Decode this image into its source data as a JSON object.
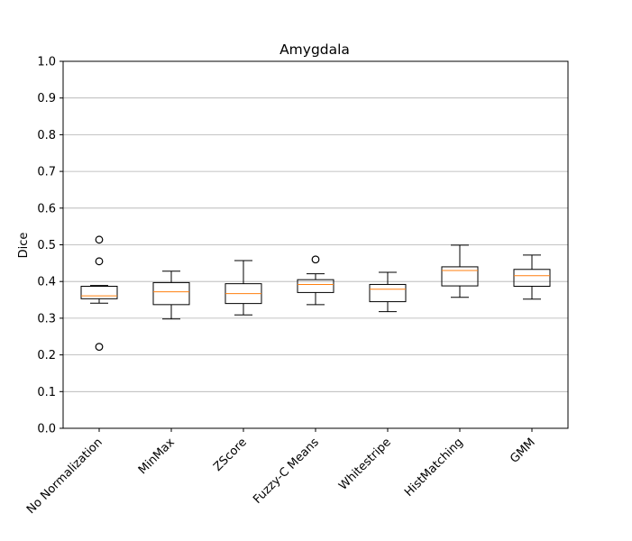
{
  "chart_data": {
    "type": "box",
    "title": "Amygdala",
    "xlabel": "",
    "ylabel": "Dice",
    "ylim": [
      0.0,
      1.0
    ],
    "yticks": [
      0.0,
      0.1,
      0.2,
      0.3,
      0.4,
      0.5,
      0.6,
      0.7,
      0.8,
      0.9,
      1.0
    ],
    "ytick_labels": [
      "0.0",
      "0.1",
      "0.2",
      "0.3",
      "0.4",
      "0.5",
      "0.6",
      "0.7",
      "0.8",
      "0.9",
      "1.0"
    ],
    "grid": "horizontal",
    "categories": [
      "No Normalization",
      "MinMax",
      "ZScore",
      "Fuzzy-C Means",
      "Whitestripe",
      "HistMatching",
      "GMM"
    ],
    "boxes": [
      {
        "whislo": 0.341,
        "q1": 0.353,
        "med": 0.361,
        "q3": 0.387,
        "whishi": 0.389,
        "fliers": [
          0.514,
          0.455,
          0.222
        ]
      },
      {
        "whislo": 0.298,
        "q1": 0.337,
        "med": 0.372,
        "q3": 0.397,
        "whishi": 0.428,
        "fliers": []
      },
      {
        "whislo": 0.309,
        "q1": 0.34,
        "med": 0.367,
        "q3": 0.394,
        "whishi": 0.457,
        "fliers": []
      },
      {
        "whislo": 0.337,
        "q1": 0.37,
        "med": 0.392,
        "q3": 0.405,
        "whishi": 0.421,
        "fliers": [
          0.46
        ]
      },
      {
        "whislo": 0.318,
        "q1": 0.345,
        "med": 0.379,
        "q3": 0.392,
        "whishi": 0.425,
        "fliers": []
      },
      {
        "whislo": 0.357,
        "q1": 0.388,
        "med": 0.43,
        "q3": 0.44,
        "whishi": 0.499,
        "fliers": []
      },
      {
        "whislo": 0.352,
        "q1": 0.387,
        "med": 0.416,
        "q3": 0.433,
        "whishi": 0.472,
        "fliers": []
      }
    ],
    "colors": {
      "box": "#000000",
      "median": "#ff7f0e",
      "grid": "#b0b0b0",
      "flier": "#000000"
    }
  }
}
